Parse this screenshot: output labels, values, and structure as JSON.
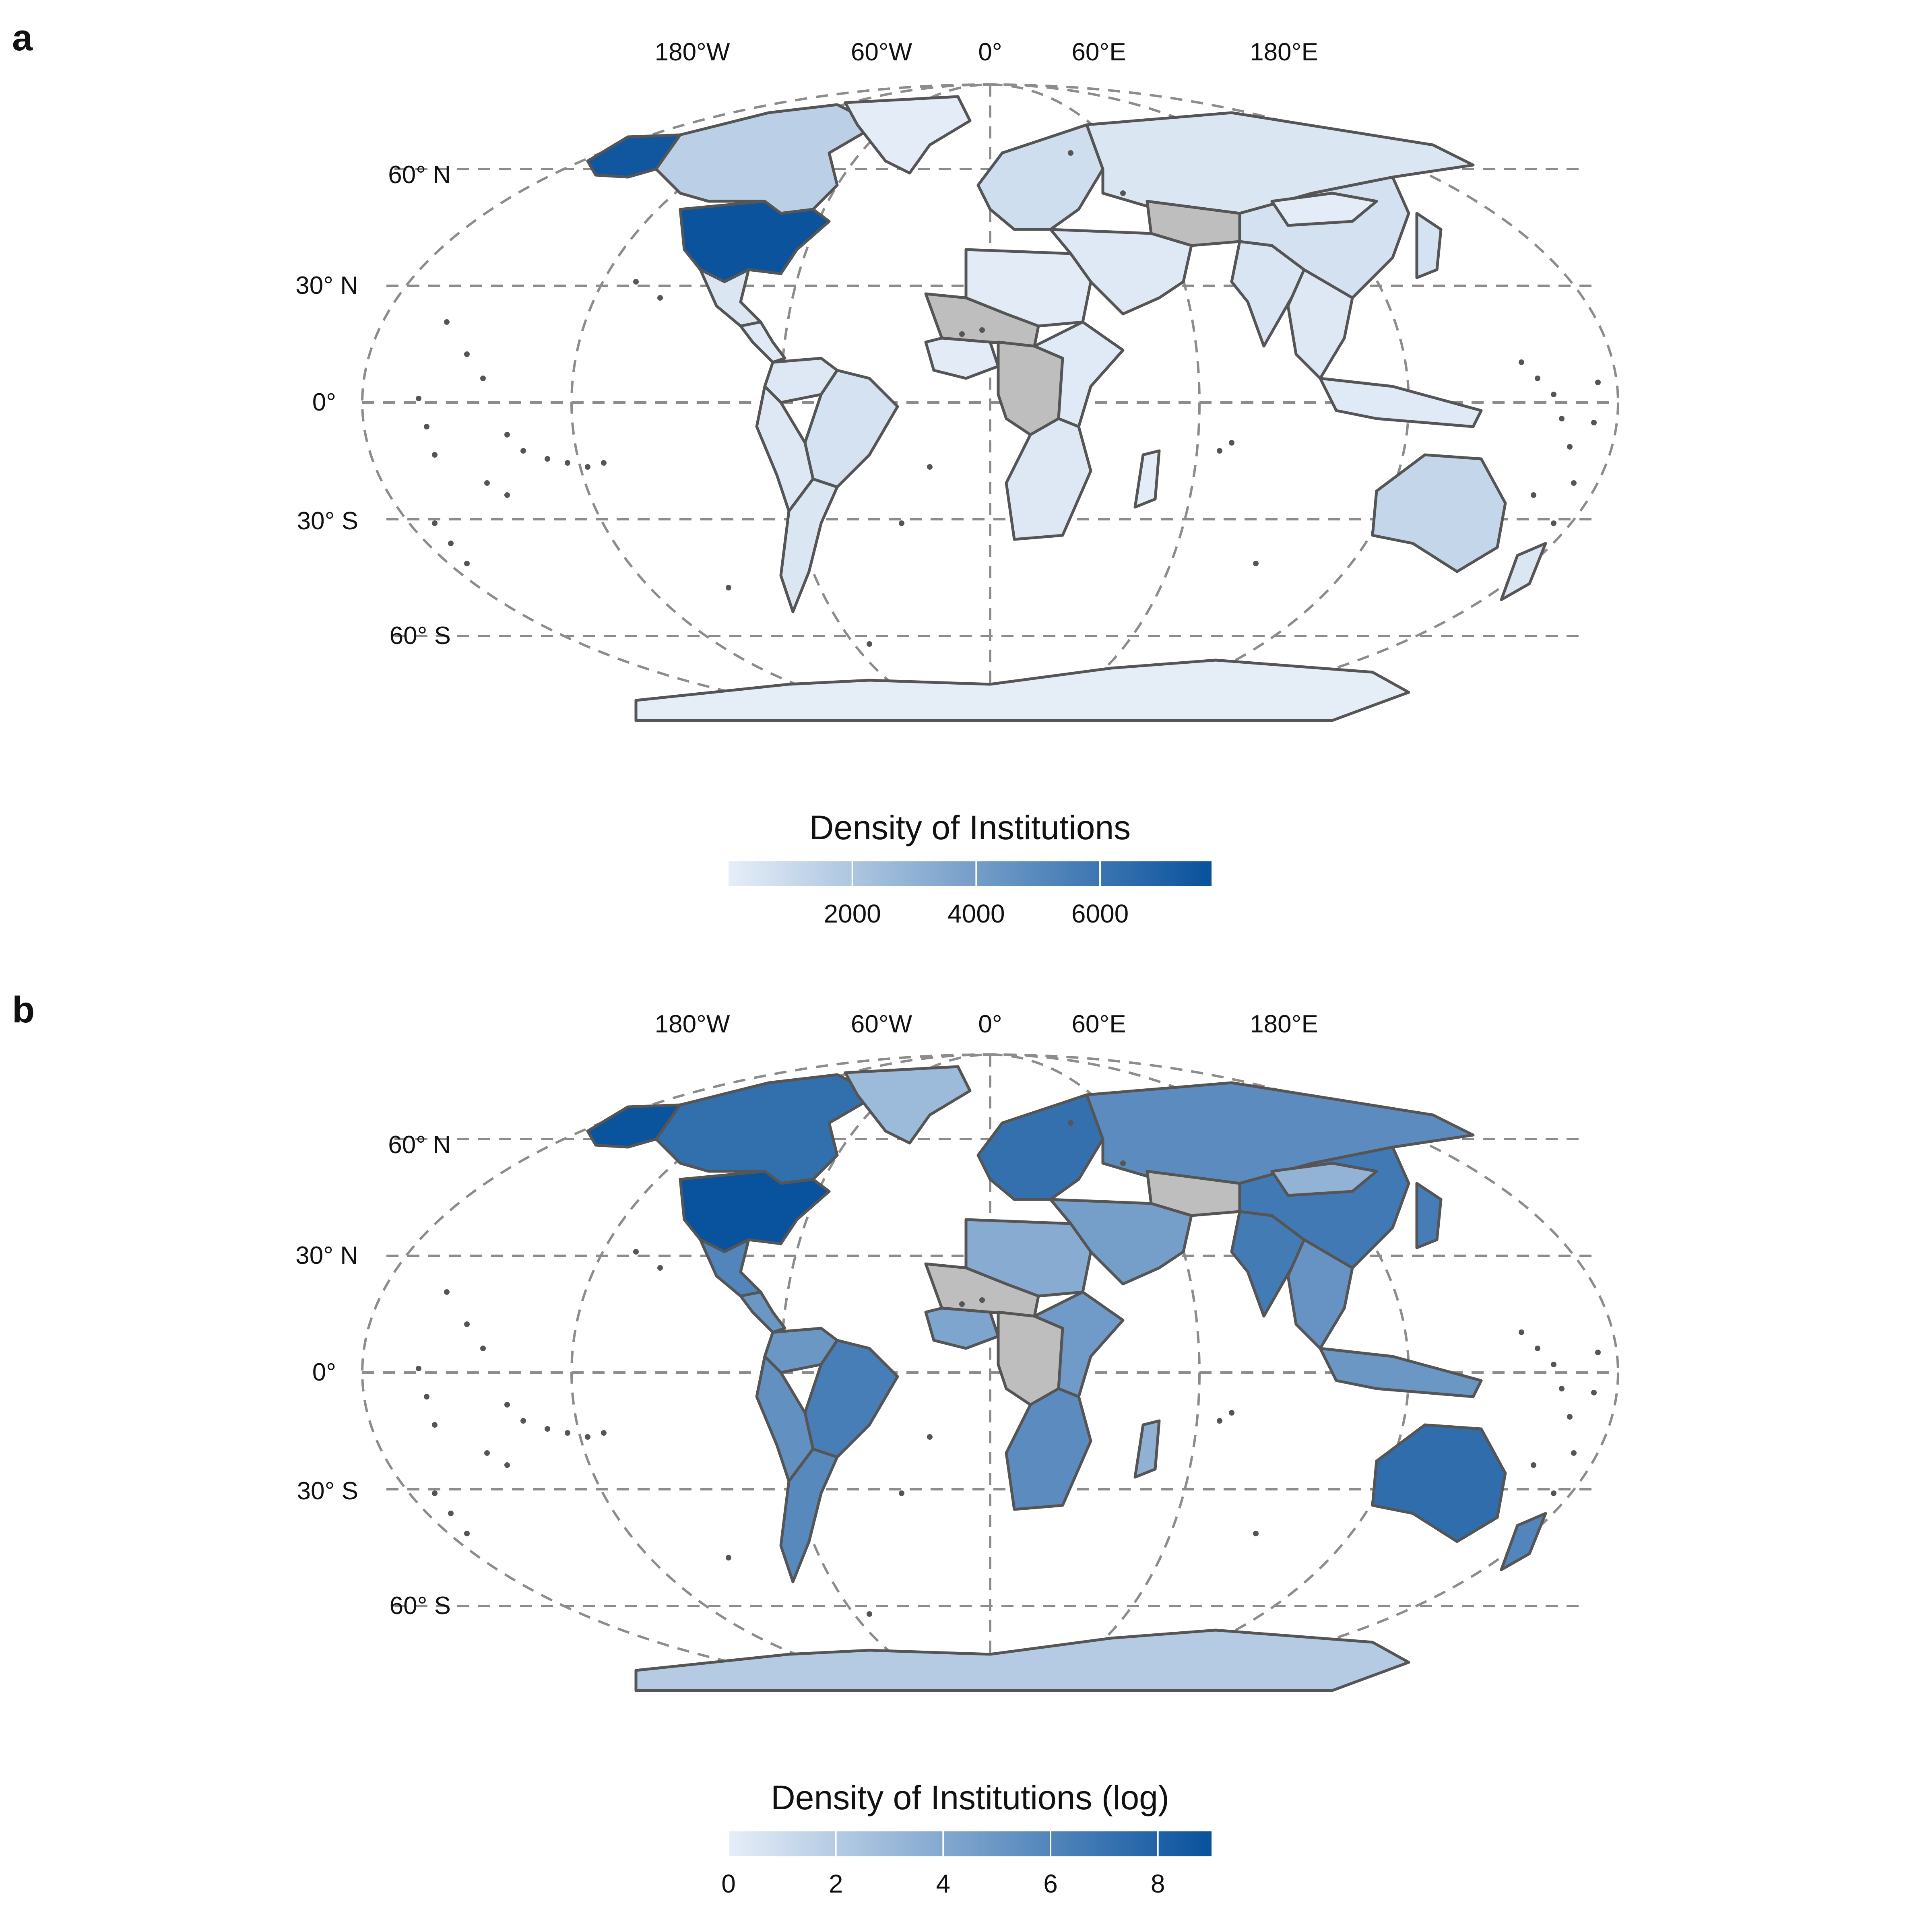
{
  "panels": [
    {
      "letter": "a",
      "lon_labels": [
        "180°W",
        "60°W",
        "0°",
        "60°E",
        "180°E"
      ],
      "lat_labels": [
        "60° N",
        "30° N",
        "0°",
        "30° S",
        "60° S"
      ],
      "legend_title": "Density of Institutions",
      "legend_ticks": [
        "2000",
        "4000",
        "6000"
      ],
      "scale": {
        "min": 0,
        "max": 7800,
        "tick_values": [
          2000,
          4000,
          6000
        ]
      }
    },
    {
      "letter": "b",
      "lon_labels": [
        "180°W",
        "60°W",
        "0°",
        "60°E",
        "180°E"
      ],
      "lat_labels": [
        "60° N",
        "30° N",
        "0°",
        "30° S",
        "60° S"
      ],
      "legend_title": "Density of Institutions (log)",
      "legend_ticks": [
        "0",
        "2",
        "4",
        "6",
        "8"
      ],
      "scale": {
        "min": 0,
        "max": 9,
        "tick_values": [
          0,
          2,
          4,
          6,
          8
        ]
      }
    }
  ],
  "chart_data": {
    "type": "choropleth",
    "colors": {
      "low": "#e6eef8",
      "high": "#08519c",
      "no_data": "#bebebe",
      "border": "#555555",
      "grid": "#8c8c8c"
    },
    "regions": {
      "alaska": {
        "a": 7500,
        "b": 8.9
      },
      "canada": {
        "a": 1500,
        "b": 7.3
      },
      "greenland": {
        "a": 100,
        "b": 3.0
      },
      "usa": {
        "a": 7700,
        "b": 8.95
      },
      "mexico": {
        "a": 400,
        "b": 6.0
      },
      "central_america": {
        "a": 200,
        "b": 5.0
      },
      "south_america_north": {
        "a": 300,
        "b": 5.0
      },
      "brazil": {
        "a": 600,
        "b": 6.4
      },
      "andes": {
        "a": 300,
        "b": 5.4
      },
      "argentina": {
        "a": 400,
        "b": 5.8
      },
      "europe": {
        "a": 800,
        "b": 7.2
      },
      "russia": {
        "a": 400,
        "b": 5.6
      },
      "central_asia": {
        "a": null,
        "b": null
      },
      "middle_east": {
        "a": 250,
        "b": 4.6
      },
      "north_africa": {
        "a": 150,
        "b": 3.8
      },
      "sahel": {
        "a": null,
        "b": null
      },
      "west_africa": {
        "a": 150,
        "b": 4.2
      },
      "central_africa": {
        "a": null,
        "b": null
      },
      "east_africa": {
        "a": 200,
        "b": 4.8
      },
      "south_africa": {
        "a": 300,
        "b": 5.6
      },
      "india": {
        "a": 450,
        "b": 6.6
      },
      "china": {
        "a": 650,
        "b": 6.7
      },
      "mongolia": {
        "a": 100,
        "b": 3.4
      },
      "southeast_asia": {
        "a": 300,
        "b": 5.2
      },
      "indonesia": {
        "a": 200,
        "b": 5.0
      },
      "japan": {
        "a": 600,
        "b": 6.5
      },
      "australia": {
        "a": 1200,
        "b": 7.4
      },
      "new_zealand": {
        "a": 400,
        "b": 6.0
      },
      "madagascar": {
        "a": 100,
        "b": 3.5
      },
      "antarctica": {
        "a": 50,
        "b": 2.0
      }
    }
  }
}
